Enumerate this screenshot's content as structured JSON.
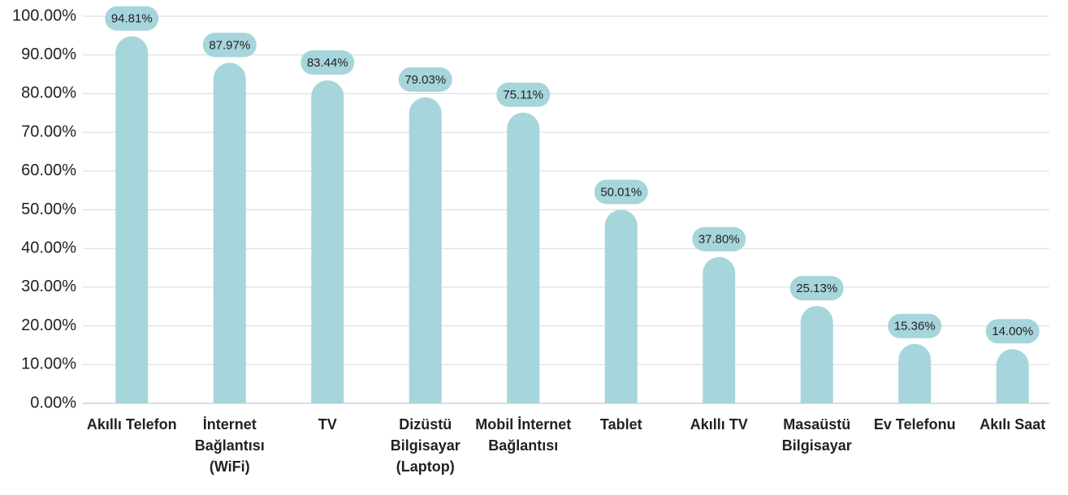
{
  "chart_data": {
    "type": "bar",
    "categories": [
      "Akıllı Telefon",
      "İnternet Bağlantısı (WiFi)",
      "TV",
      "Dizüstü Bilgisayar (Laptop)",
      "Mobil İnternet Bağlantısı",
      "Tablet",
      "Akıllı TV",
      "Masaüstü Bilgisayar",
      "Ev Telefonu",
      "Akılı Saat"
    ],
    "values": [
      94.81,
      87.97,
      83.44,
      79.03,
      75.11,
      50.01,
      37.8,
      25.13,
      15.36,
      14.0
    ],
    "value_labels": [
      "94.81%",
      "87.97%",
      "83.44%",
      "79.03%",
      "75.11%",
      "50.01%",
      "37.80%",
      "25.13%",
      "15.36%",
      "14.00%"
    ],
    "color": "#a6d5db",
    "ylim": [
      0,
      100
    ],
    "yticks": [
      {
        "value": 0,
        "label": "0.00%"
      },
      {
        "value": 10,
        "label": "10.00%"
      },
      {
        "value": 20,
        "label": "20.00%"
      },
      {
        "value": 30,
        "label": "30.00%"
      },
      {
        "value": 40,
        "label": "40.00%"
      },
      {
        "value": 50,
        "label": "50.00%"
      },
      {
        "value": 60,
        "label": "60.00%"
      },
      {
        "value": 70,
        "label": "70.00%"
      },
      {
        "value": 80,
        "label": "80.00%"
      },
      {
        "value": 90,
        "label": "90.00%"
      },
      {
        "value": 100,
        "label": "100.00%"
      }
    ],
    "grid": true
  }
}
